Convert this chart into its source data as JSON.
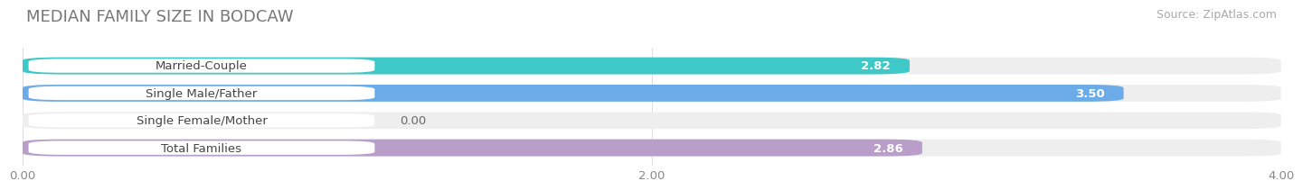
{
  "title": "MEDIAN FAMILY SIZE IN BODCAW",
  "source": "Source: ZipAtlas.com",
  "categories": [
    "Married-Couple",
    "Single Male/Father",
    "Single Female/Mother",
    "Total Families"
  ],
  "values": [
    2.82,
    3.5,
    0.0,
    2.86
  ],
  "bar_colors": [
    "#3ec8c8",
    "#6aabe8",
    "#f4a0b0",
    "#b89ec8"
  ],
  "background_color": "#ffffff",
  "bar_bg_color": "#eeeeee",
  "bar_bg_color2": "#f5f5f5",
  "xlim": [
    0,
    4.0
  ],
  "xticks": [
    0.0,
    2.0,
    4.0
  ],
  "xtick_labels": [
    "0.00",
    "2.00",
    "4.00"
  ],
  "label_fontsize": 9.5,
  "value_fontsize": 9.5,
  "title_fontsize": 13,
  "source_fontsize": 9
}
